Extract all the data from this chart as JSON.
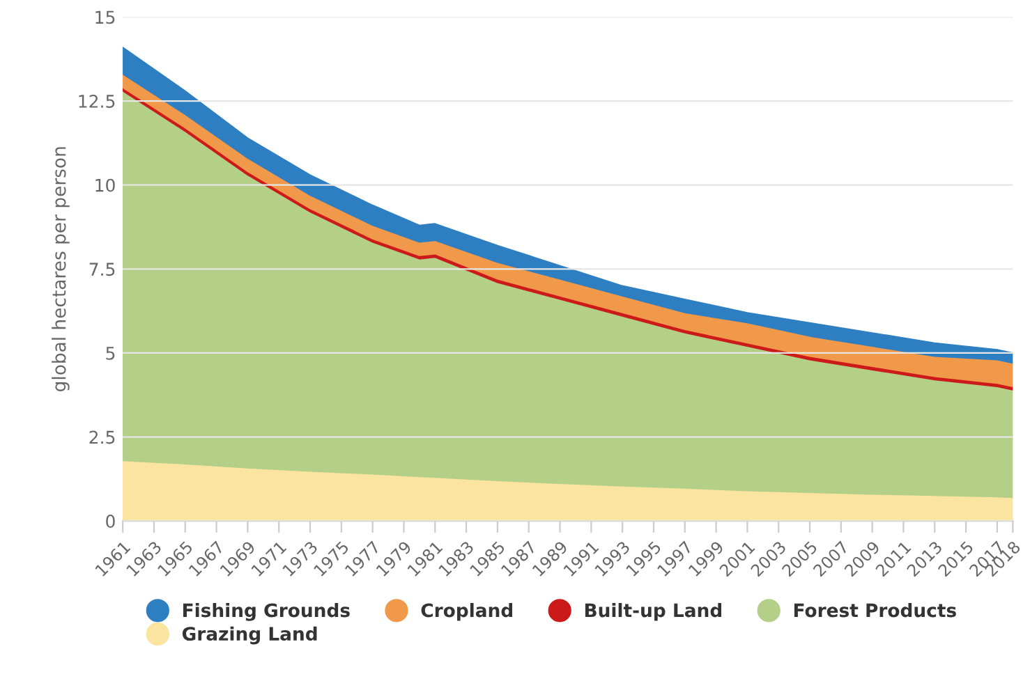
{
  "chart_data": {
    "type": "area",
    "stacked": true,
    "ylabel": "global hectares per person",
    "x": [
      1961,
      1965,
      1969,
      1973,
      1977,
      1980,
      1981,
      1985,
      1989,
      1993,
      1997,
      2001,
      2005,
      2009,
      2013,
      2017,
      2018
    ],
    "series": [
      {
        "name": "Grazing Land",
        "color": "#fbe3a0",
        "values": [
          1.8,
          1.7,
          1.58,
          1.48,
          1.4,
          1.32,
          1.3,
          1.2,
          1.12,
          1.04,
          0.98,
          0.9,
          0.85,
          0.8,
          0.76,
          0.72,
          0.7
        ]
      },
      {
        "name": "Forest Products",
        "color": "#b3cf88",
        "values": [
          11.0,
          9.9,
          8.72,
          7.72,
          6.9,
          6.48,
          6.55,
          5.9,
          5.48,
          5.06,
          4.62,
          4.3,
          3.95,
          3.7,
          3.44,
          3.28,
          3.2
        ]
      },
      {
        "name": "Built-up Land",
        "color": "#cc1a1a",
        "values": [
          0.1,
          0.1,
          0.1,
          0.1,
          0.1,
          0.1,
          0.1,
          0.1,
          0.1,
          0.1,
          0.1,
          0.1,
          0.1,
          0.1,
          0.1,
          0.1,
          0.1
        ]
      },
      {
        "name": "Cropland",
        "color": "#f0994a",
        "values": [
          0.4,
          0.4,
          0.4,
          0.4,
          0.4,
          0.4,
          0.4,
          0.5,
          0.5,
          0.5,
          0.5,
          0.6,
          0.6,
          0.6,
          0.6,
          0.7,
          0.7
        ]
      },
      {
        "name": "Fishing Grounds",
        "color": "#2e7fc2",
        "values": [
          0.8,
          0.7,
          0.6,
          0.6,
          0.6,
          0.5,
          0.5,
          0.5,
          0.4,
          0.3,
          0.4,
          0.3,
          0.4,
          0.4,
          0.4,
          0.3,
          0.3
        ]
      }
    ],
    "xlim": [
      1961,
      2018
    ],
    "xticks": [
      1961,
      1963,
      1965,
      1967,
      1969,
      1971,
      1973,
      1975,
      1977,
      1979,
      1981,
      1983,
      1985,
      1987,
      1989,
      1991,
      1993,
      1995,
      1997,
      1999,
      2001,
      2003,
      2005,
      2007,
      2009,
      2011,
      2013,
      2015,
      2017,
      2018
    ],
    "ylim": [
      0,
      15
    ],
    "yticks": [
      0,
      2.5,
      5,
      7.5,
      10,
      12.5,
      15
    ],
    "grid": "y",
    "legend": "bottom"
  }
}
